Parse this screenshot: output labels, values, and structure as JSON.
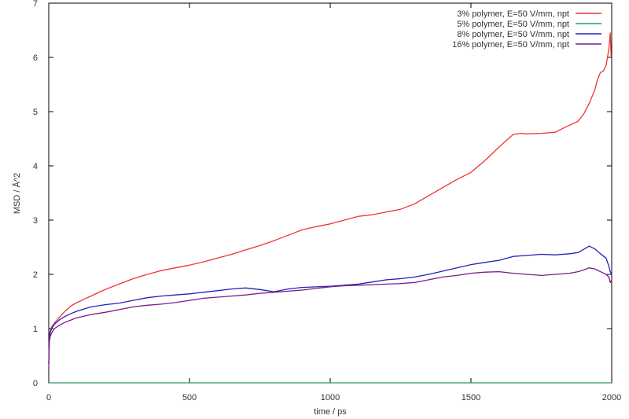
{
  "chart_data": {
    "type": "line",
    "title": "",
    "xlabel": "time / ps",
    "ylabel": "MSD / Å^2",
    "xlim": [
      0,
      2000
    ],
    "ylim": [
      0,
      7
    ],
    "xticks": [
      0,
      500,
      1000,
      1500,
      2000
    ],
    "yticks": [
      0,
      1,
      2,
      3,
      4,
      5,
      6,
      7
    ],
    "grid": false,
    "legend_position": "top-right",
    "series": [
      {
        "name": "3% polymer, E=50 V/mm, npt",
        "color": "#f03232",
        "x": [
          0,
          2,
          5,
          10,
          20,
          40,
          60,
          80,
          100,
          150,
          200,
          250,
          300,
          350,
          400,
          450,
          500,
          550,
          600,
          650,
          700,
          750,
          800,
          850,
          880,
          900,
          950,
          1000,
          1050,
          1100,
          1150,
          1200,
          1250,
          1300,
          1350,
          1400,
          1450,
          1500,
          1550,
          1600,
          1650,
          1680,
          1700,
          1750,
          1800,
          1830,
          1850,
          1880,
          1900,
          1920,
          1940,
          1950,
          1960,
          1970,
          1980,
          1990,
          1995,
          1998
        ],
        "y": [
          0.35,
          0.85,
          0.95,
          1.03,
          1.1,
          1.22,
          1.33,
          1.42,
          1.48,
          1.6,
          1.72,
          1.82,
          1.92,
          2.0,
          2.07,
          2.12,
          2.17,
          2.23,
          2.3,
          2.37,
          2.45,
          2.53,
          2.62,
          2.72,
          2.78,
          2.82,
          2.88,
          2.93,
          3.0,
          3.07,
          3.1,
          3.15,
          3.2,
          3.3,
          3.45,
          3.6,
          3.75,
          3.88,
          4.1,
          4.35,
          4.58,
          4.6,
          4.59,
          4.6,
          4.62,
          4.7,
          4.75,
          4.82,
          4.95,
          5.15,
          5.4,
          5.6,
          5.72,
          5.75,
          5.85,
          6.15,
          6.45,
          6.0
        ]
      },
      {
        "name": "5% polymer, E=50 V/mm, npt",
        "color": "#2e9a5e",
        "x": [
          0,
          2000
        ],
        "y": [
          0.0,
          0.0
        ]
      },
      {
        "name": "8% polymer, E=50 V/mm, npt",
        "color": "#2222bb",
        "x": [
          0,
          2,
          5,
          10,
          20,
          40,
          60,
          80,
          100,
          150,
          200,
          250,
          300,
          350,
          400,
          450,
          500,
          550,
          600,
          650,
          700,
          750,
          800,
          850,
          900,
          950,
          1000,
          1050,
          1100,
          1150,
          1200,
          1250,
          1300,
          1350,
          1400,
          1450,
          1500,
          1550,
          1600,
          1650,
          1700,
          1750,
          1800,
          1850,
          1880,
          1900,
          1920,
          1940,
          1960,
          1980,
          1990,
          1995,
          2000
        ],
        "y": [
          0.35,
          0.8,
          0.92,
          1.0,
          1.08,
          1.17,
          1.23,
          1.28,
          1.32,
          1.4,
          1.44,
          1.47,
          1.52,
          1.57,
          1.6,
          1.62,
          1.64,
          1.67,
          1.7,
          1.73,
          1.75,
          1.72,
          1.68,
          1.73,
          1.76,
          1.77,
          1.78,
          1.8,
          1.82,
          1.86,
          1.9,
          1.92,
          1.95,
          2.0,
          2.06,
          2.12,
          2.18,
          2.22,
          2.26,
          2.33,
          2.35,
          2.37,
          2.36,
          2.38,
          2.4,
          2.46,
          2.52,
          2.47,
          2.38,
          2.3,
          2.15,
          2.05,
          2.0
        ]
      },
      {
        "name": "16% polymer, E=50 V/mm, npt",
        "color": "#7a1a8a",
        "x": [
          0,
          2,
          5,
          10,
          20,
          40,
          60,
          80,
          100,
          150,
          200,
          250,
          300,
          350,
          400,
          450,
          500,
          550,
          600,
          650,
          700,
          750,
          800,
          850,
          900,
          950,
          1000,
          1050,
          1100,
          1150,
          1200,
          1250,
          1300,
          1350,
          1400,
          1450,
          1500,
          1550,
          1600,
          1650,
          1700,
          1750,
          1800,
          1850,
          1880,
          1900,
          1920,
          1940,
          1960,
          1980,
          1990,
          1995,
          2000
        ],
        "y": [
          0.3,
          0.75,
          0.85,
          0.92,
          1.0,
          1.07,
          1.12,
          1.16,
          1.2,
          1.26,
          1.3,
          1.35,
          1.4,
          1.43,
          1.45,
          1.48,
          1.52,
          1.56,
          1.58,
          1.6,
          1.62,
          1.65,
          1.67,
          1.69,
          1.71,
          1.74,
          1.77,
          1.79,
          1.8,
          1.81,
          1.82,
          1.83,
          1.85,
          1.9,
          1.95,
          1.98,
          2.02,
          2.04,
          2.05,
          2.02,
          2.0,
          1.98,
          2.0,
          2.02,
          2.05,
          2.08,
          2.12,
          2.1,
          2.05,
          2.0,
          1.95,
          1.85,
          1.9
        ]
      }
    ]
  }
}
